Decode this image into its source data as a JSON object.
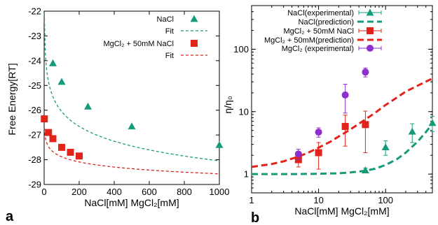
{
  "colors": {
    "green": "#149c7a",
    "red": "#e2231a",
    "purple": "#8d2fce"
  },
  "chart_data": [
    {
      "type": "scatter",
      "panel_label": "a",
      "xlabel": "NaCl[mM] MgCl₂[mM]",
      "ylabel": "Free Energy[RT]",
      "xlim": [
        0,
        1000
      ],
      "ylim": [
        -29,
        -22
      ],
      "xticks": [
        0,
        200,
        400,
        600,
        800,
        1000
      ],
      "yticks": [
        -29,
        -28,
        -27,
        -26,
        -25,
        -24,
        -23,
        -22
      ],
      "legend_position": "top-right",
      "series": [
        {
          "name": "NaCl",
          "kind": "points",
          "marker": "triangle",
          "color": "#149c7a",
          "x": [
            50,
            100,
            250,
            500,
            1000
          ],
          "y": [
            -24.1,
            -24.85,
            -25.85,
            -26.65,
            -27.4
          ]
        },
        {
          "name": "Fit",
          "kind": "fit",
          "color": "#149c7a",
          "fit": {
            "a": -22.1,
            "b": -1.99,
            "c": 0.03
          }
        },
        {
          "name": "MgCl₂ + 50mM NaCl",
          "kind": "points",
          "marker": "square",
          "color": "#e2231a",
          "x": [
            1,
            25,
            50,
            100,
            150,
            200
          ],
          "y": [
            -26.35,
            -26.9,
            -27.15,
            -27.5,
            -27.7,
            -27.85
          ]
        },
        {
          "name": "Fit",
          "kind": "fit",
          "color": "#e2231a",
          "fit": {
            "a": -26.5,
            "b": -0.69,
            "c": 1
          }
        }
      ]
    },
    {
      "type": "scatter",
      "panel_label": "b",
      "xlabel": "NaCl[mM] MgCl₂[mM]",
      "ylabel": "η/η₀",
      "xscale": "log",
      "yscale": "log",
      "xlim": [
        1,
        500
      ],
      "ylim": [
        0.5,
        500
      ],
      "xticks": [
        1,
        10,
        100
      ],
      "yticks": [
        1,
        10,
        100
      ],
      "legend_position": "top-right",
      "series": [
        {
          "name": "NaCl(experimental)",
          "kind": "points",
          "marker": "triangle",
          "color": "#149c7a",
          "x": [
            50,
            100,
            250,
            500
          ],
          "y": [
            1.15,
            2.7,
            4.8,
            6.6
          ],
          "err": [
            0.1,
            0.7,
            1.6,
            1.8
          ]
        },
        {
          "name": "NaCl(prediction)",
          "kind": "curve",
          "color": "#149c7a",
          "x": [
            1,
            5,
            10,
            20,
            30,
            50,
            70,
            100,
            150,
            200,
            300,
            400,
            500
          ],
          "y": [
            1.0,
            1.0,
            1.01,
            1.03,
            1.06,
            1.13,
            1.22,
            1.4,
            1.75,
            2.2,
            3.3,
            4.7,
            6.4
          ]
        },
        {
          "name": "MgCl₂ + 50mM NaCl",
          "kind": "points",
          "marker": "square",
          "color": "#e2231a",
          "x": [
            5,
            10,
            25,
            50
          ],
          "y": [
            1.7,
            2.2,
            5.8,
            6.2
          ],
          "err": [
            0.4,
            1.0,
            3.0,
            4.0
          ]
        },
        {
          "name": "MgCl₂ + 50mM(prediction)",
          "kind": "curve",
          "color": "#e2231a",
          "x": [
            1,
            2,
            3,
            5,
            7,
            10,
            15,
            20,
            30,
            50,
            70,
            100,
            150,
            200,
            300,
            500
          ],
          "y": [
            1.3,
            1.45,
            1.6,
            1.9,
            2.2,
            2.65,
            3.3,
            4.0,
            5.2,
            7.5,
            9.6,
            12.8,
            17.0,
            21.0,
            26.0,
            34.0
          ]
        },
        {
          "name": "MgCl₂ (experimental)",
          "kind": "points",
          "marker": "circle",
          "color": "#8d2fce",
          "x": [
            5,
            10,
            25,
            50
          ],
          "y": [
            2.1,
            4.7,
            18.5,
            43.0
          ],
          "err": [
            0.4,
            0.8,
            9.0,
            7.0
          ]
        }
      ]
    }
  ]
}
